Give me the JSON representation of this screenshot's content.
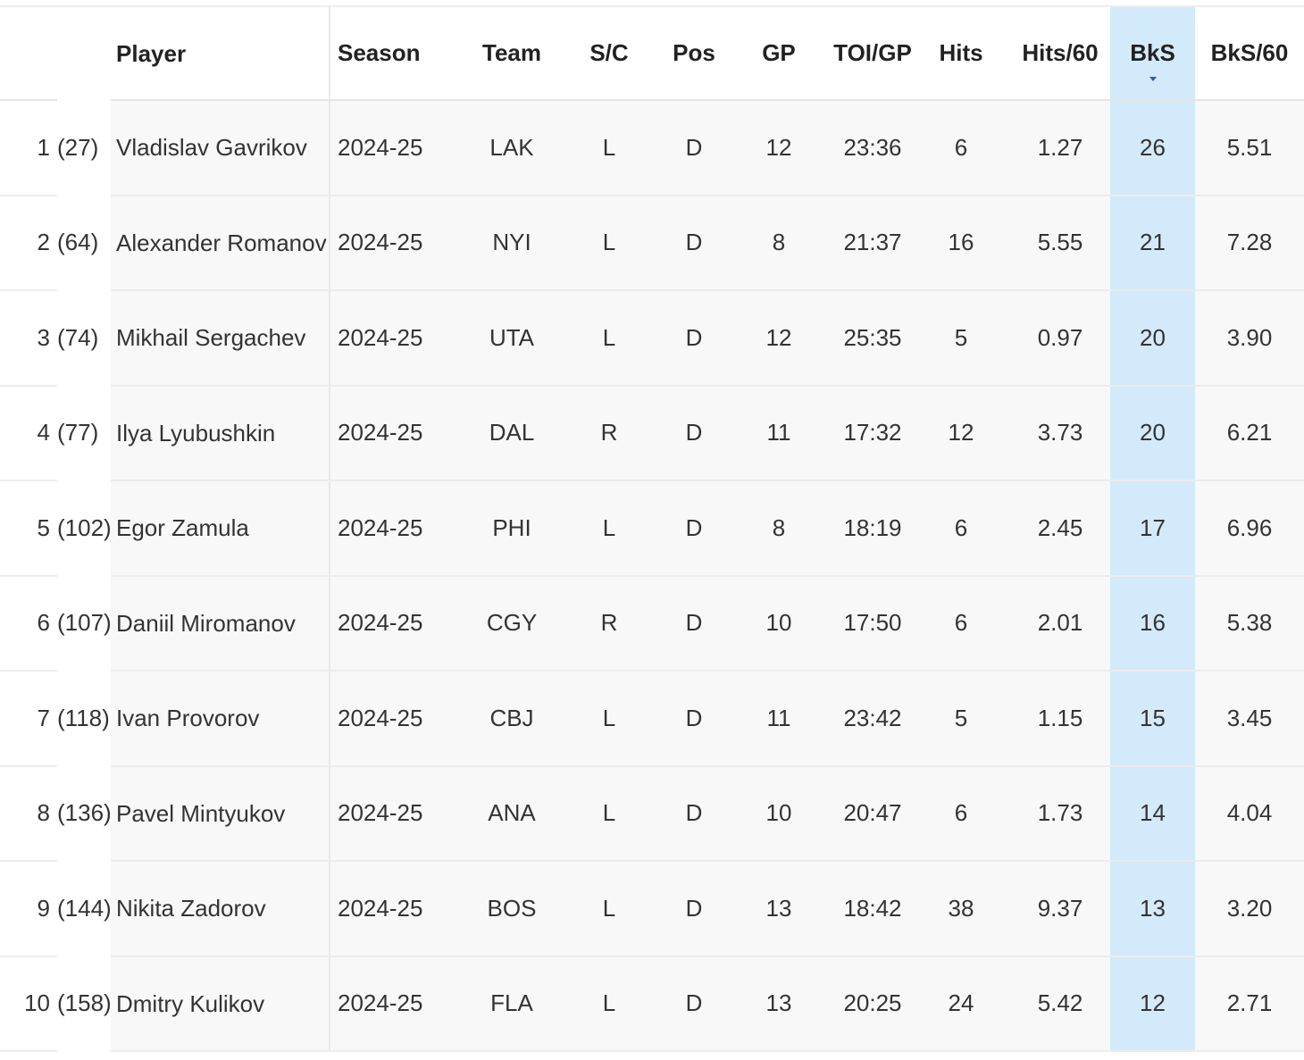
{
  "table": {
    "columns": [
      "",
      "",
      "Player",
      "Season",
      "Team",
      "S/C",
      "Pos",
      "GP",
      "TOI/GP",
      "Hits",
      "Hits/60",
      "BkS",
      "BkS/60"
    ],
    "sorted_column": "BkS",
    "sort_direction": "descending",
    "highlight_color": "#d3eafa",
    "rows": [
      {
        "rank": "1",
        "pick": "(27)",
        "player": "Vladislav Gavrikov",
        "season": "2024-25",
        "team": "LAK",
        "sc": "L",
        "pos": "D",
        "gp": "12",
        "toi": "23:36",
        "hits": "6",
        "hits60": "1.27",
        "bks": "26",
        "bks60": "5.51"
      },
      {
        "rank": "2",
        "pick": "(64)",
        "player": "Alexander Romanov",
        "season": "2024-25",
        "team": "NYI",
        "sc": "L",
        "pos": "D",
        "gp": "8",
        "toi": "21:37",
        "hits": "16",
        "hits60": "5.55",
        "bks": "21",
        "bks60": "7.28"
      },
      {
        "rank": "3",
        "pick": "(74)",
        "player": "Mikhail Sergachev",
        "season": "2024-25",
        "team": "UTA",
        "sc": "L",
        "pos": "D",
        "gp": "12",
        "toi": "25:35",
        "hits": "5",
        "hits60": "0.97",
        "bks": "20",
        "bks60": "3.90"
      },
      {
        "rank": "4",
        "pick": "(77)",
        "player": "Ilya Lyubushkin",
        "season": "2024-25",
        "team": "DAL",
        "sc": "R",
        "pos": "D",
        "gp": "11",
        "toi": "17:32",
        "hits": "12",
        "hits60": "3.73",
        "bks": "20",
        "bks60": "6.21"
      },
      {
        "rank": "5",
        "pick": "(102)",
        "player": "Egor Zamula",
        "season": "2024-25",
        "team": "PHI",
        "sc": "L",
        "pos": "D",
        "gp": "8",
        "toi": "18:19",
        "hits": "6",
        "hits60": "2.45",
        "bks": "17",
        "bks60": "6.96"
      },
      {
        "rank": "6",
        "pick": "(107)",
        "player": "Daniil Miromanov",
        "season": "2024-25",
        "team": "CGY",
        "sc": "R",
        "pos": "D",
        "gp": "10",
        "toi": "17:50",
        "hits": "6",
        "hits60": "2.01",
        "bks": "16",
        "bks60": "5.38"
      },
      {
        "rank": "7",
        "pick": "(118)",
        "player": "Ivan Provorov",
        "season": "2024-25",
        "team": "CBJ",
        "sc": "L",
        "pos": "D",
        "gp": "11",
        "toi": "23:42",
        "hits": "5",
        "hits60": "1.15",
        "bks": "15",
        "bks60": "3.45"
      },
      {
        "rank": "8",
        "pick": "(136)",
        "player": "Pavel Mintyukov",
        "season": "2024-25",
        "team": "ANA",
        "sc": "L",
        "pos": "D",
        "gp": "10",
        "toi": "20:47",
        "hits": "6",
        "hits60": "1.73",
        "bks": "14",
        "bks60": "4.04"
      },
      {
        "rank": "9",
        "pick": "(144)",
        "player": "Nikita Zadorov",
        "season": "2024-25",
        "team": "BOS",
        "sc": "L",
        "pos": "D",
        "gp": "13",
        "toi": "18:42",
        "hits": "38",
        "hits60": "9.37",
        "bks": "13",
        "bks60": "3.20"
      },
      {
        "rank": "10",
        "pick": "(158)",
        "player": "Dmitry Kulikov",
        "season": "2024-25",
        "team": "FLA",
        "sc": "L",
        "pos": "D",
        "gp": "13",
        "toi": "20:25",
        "hits": "24",
        "hits60": "5.42",
        "bks": "12",
        "bks60": "2.71"
      }
    ]
  }
}
